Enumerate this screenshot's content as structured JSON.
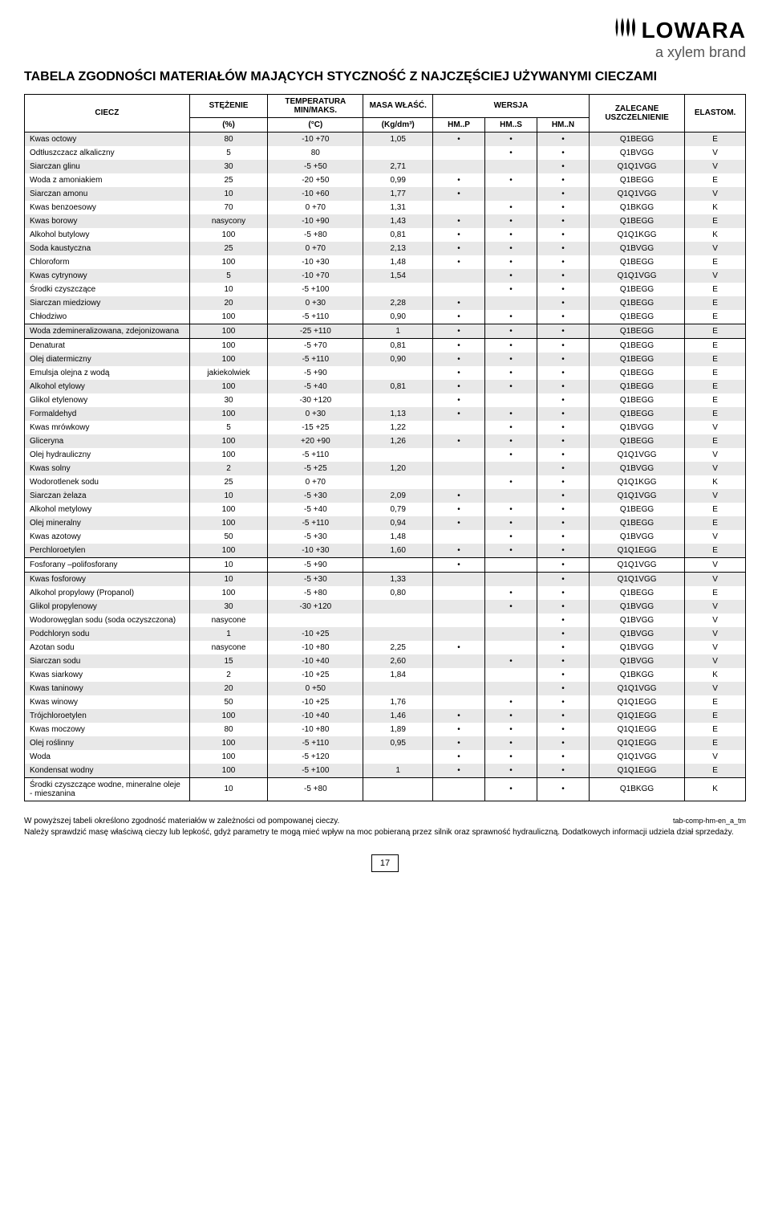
{
  "logo": {
    "brand": "LOWARA",
    "sub": "a xylem brand"
  },
  "title": "TABELA ZGODNOŚCI MATERIAŁÓW MAJĄCYCH STYCZNOŚĆ Z NAJCZĘŚCIEJ UŻYWANYMI CIECZAMI",
  "headers": {
    "liquid": "CIECZ",
    "conc": "STĘŻENIE",
    "temp": "TEMPERATURA MIN/MAKS.",
    "sg": "MASA WŁAŚĆ.",
    "version": "WERSJA",
    "seal": "ZALECANE USZCZELNIENIE",
    "elast": "ELASTOM.",
    "conc_u": "(%)",
    "temp_u": "(°C)",
    "sg_u": "(Kg/dm³)",
    "hmp": "HM..P",
    "hms": "HM..S",
    "hmn": "HM..N"
  },
  "rows": [
    {
      "l": "Kwas octowy",
      "c": "80",
      "t": "-10 +70",
      "sg": "1,05",
      "p": "•",
      "s": "•",
      "n": "•",
      "seal": "Q1BEGG",
      "e": "E"
    },
    {
      "l": "Odtłuszczacz alkaliczny",
      "c": "5",
      "t": "80",
      "sg": "",
      "p": "",
      "s": "•",
      "n": "•",
      "seal": "Q1BVGG",
      "e": "V"
    },
    {
      "l": "Siarczan glinu",
      "c": "30",
      "t": "-5 +50",
      "sg": "2,71",
      "p": "",
      "s": "",
      "n": "•",
      "seal": "Q1Q1VGG",
      "e": "V"
    },
    {
      "l": "Woda z amoniakiem",
      "c": "25",
      "t": "-20 +50",
      "sg": "0,99",
      "p": "•",
      "s": "•",
      "n": "•",
      "seal": "Q1BEGG",
      "e": "E"
    },
    {
      "l": "Siarczan amonu",
      "c": "10",
      "t": "-10 +60",
      "sg": "1,77",
      "p": "•",
      "s": "",
      "n": "•",
      "seal": "Q1Q1VGG",
      "e": "V"
    },
    {
      "l": "Kwas benzoesowy",
      "c": "70",
      "t": "0 +70",
      "sg": "1,31",
      "p": "",
      "s": "•",
      "n": "•",
      "seal": "Q1BKGG",
      "e": "K"
    },
    {
      "l": "Kwas borowy",
      "c": "nasycony",
      "t": "-10 +90",
      "sg": "1,43",
      "p": "•",
      "s": "•",
      "n": "•",
      "seal": "Q1BEGG",
      "e": "E"
    },
    {
      "l": "Alkohol butylowy",
      "c": "100",
      "t": "-5 +80",
      "sg": "0,81",
      "p": "•",
      "s": "•",
      "n": "•",
      "seal": "Q1Q1KGG",
      "e": "K"
    },
    {
      "l": "Soda kaustyczna",
      "c": "25",
      "t": "0 +70",
      "sg": "2,13",
      "p": "•",
      "s": "•",
      "n": "•",
      "seal": "Q1BVGG",
      "e": "V"
    },
    {
      "l": "Chloroform",
      "c": "100",
      "t": "-10 +30",
      "sg": "1,48",
      "p": "•",
      "s": "•",
      "n": "•",
      "seal": "Q1BEGG",
      "e": "E"
    },
    {
      "l": "Kwas cytrynowy",
      "c": "5",
      "t": "-10 +70",
      "sg": "1,54",
      "p": "",
      "s": "•",
      "n": "•",
      "seal": "Q1Q1VGG",
      "e": "V"
    },
    {
      "l": "Środki czyszczące",
      "c": "10",
      "t": "-5 +100",
      "sg": "",
      "p": "",
      "s": "•",
      "n": "•",
      "seal": "Q1BEGG",
      "e": "E"
    },
    {
      "l": "Siarczan miedziowy",
      "c": "20",
      "t": "0 +30",
      "sg": "2,28",
      "p": "•",
      "s": "",
      "n": "•",
      "seal": "Q1BEGG",
      "e": "E"
    },
    {
      "l": "Chłodziwo",
      "c": "100",
      "t": "-5 +110",
      "sg": "0,90",
      "p": "•",
      "s": "•",
      "n": "•",
      "seal": "Q1BEGG",
      "e": "E",
      "sep": true
    },
    {
      "l": "Woda zdemineralizowana, zdejonizowana",
      "c": "100",
      "t": "-25 +110",
      "sg": "1",
      "p": "•",
      "s": "•",
      "n": "•",
      "seal": "Q1BEGG",
      "e": "E",
      "sep": true
    },
    {
      "l": "Denaturat",
      "c": "100",
      "t": "-5 +70",
      "sg": "0,81",
      "p": "•",
      "s": "•",
      "n": "•",
      "seal": "Q1BEGG",
      "e": "E",
      "sepT": true
    },
    {
      "l": "Olej diatermiczny",
      "c": "100",
      "t": "-5 +110",
      "sg": "0,90",
      "p": "•",
      "s": "•",
      "n": "•",
      "seal": "Q1BEGG",
      "e": "E"
    },
    {
      "l": "Emulsja olejna z wodą",
      "c": "jakiekolwiek",
      "t": "-5 +90",
      "sg": "",
      "p": "•",
      "s": "•",
      "n": "•",
      "seal": "Q1BEGG",
      "e": "E"
    },
    {
      "l": "Alkohol etylowy",
      "c": "100",
      "t": "-5 +40",
      "sg": "0,81",
      "p": "•",
      "s": "•",
      "n": "•",
      "seal": "Q1BEGG",
      "e": "E"
    },
    {
      "l": "Glikol etylenowy",
      "c": "30",
      "t": "-30 +120",
      "sg": "",
      "p": "•",
      "s": "",
      "n": "•",
      "seal": "Q1BEGG",
      "e": "E"
    },
    {
      "l": "Formaldehyd",
      "c": "100",
      "t": "0 +30",
      "sg": "1,13",
      "p": "•",
      "s": "•",
      "n": "•",
      "seal": "Q1BEGG",
      "e": "E"
    },
    {
      "l": "Kwas mrówkowy",
      "c": "5",
      "t": "-15 +25",
      "sg": "1,22",
      "p": "",
      "s": "•",
      "n": "•",
      "seal": "Q1BVGG",
      "e": "V"
    },
    {
      "l": "Gliceryna",
      "c": "100",
      "t": "+20 +90",
      "sg": "1,26",
      "p": "•",
      "s": "•",
      "n": "•",
      "seal": "Q1BEGG",
      "e": "E"
    },
    {
      "l": "Olej hydrauliczny",
      "c": "100",
      "t": "-5 +110",
      "sg": "",
      "p": "",
      "s": "•",
      "n": "•",
      "seal": "Q1Q1VGG",
      "e": "V"
    },
    {
      "l": "Kwas solny",
      "c": "2",
      "t": "-5 +25",
      "sg": "1,20",
      "p": "",
      "s": "",
      "n": "•",
      "seal": "Q1BVGG",
      "e": "V"
    },
    {
      "l": "Wodorotlenek sodu",
      "c": "25",
      "t": "0 +70",
      "sg": "",
      "p": "",
      "s": "•",
      "n": "•",
      "seal": "Q1Q1KGG",
      "e": "K"
    },
    {
      "l": "Siarczan żelaza",
      "c": "10",
      "t": "-5 +30",
      "sg": "2,09",
      "p": "•",
      "s": "",
      "n": "•",
      "seal": "Q1Q1VGG",
      "e": "V"
    },
    {
      "l": "Alkohol metylowy",
      "c": "100",
      "t": "-5 +40",
      "sg": "0,79",
      "p": "•",
      "s": "•",
      "n": "•",
      "seal": "Q1BEGG",
      "e": "E"
    },
    {
      "l": "Olej mineralny",
      "c": "100",
      "t": "-5 +110",
      "sg": "0,94",
      "p": "•",
      "s": "•",
      "n": "•",
      "seal": "Q1BEGG",
      "e": "E"
    },
    {
      "l": "Kwas azotowy",
      "c": "50",
      "t": "-5 +30",
      "sg": "1,48",
      "p": "",
      "s": "•",
      "n": "•",
      "seal": "Q1BVGG",
      "e": "V"
    },
    {
      "l": "Perchloroetylen",
      "c": "100",
      "t": "-10 +30",
      "sg": "1,60",
      "p": "•",
      "s": "•",
      "n": "•",
      "seal": "Q1Q1EGG",
      "e": "E",
      "sep": true
    },
    {
      "l": "Fosforany –polifosforany",
      "c": "10",
      "t": "-5 +90",
      "sg": "",
      "p": "•",
      "s": "",
      "n": "•",
      "seal": "Q1Q1VGG",
      "e": "V",
      "sep": true
    },
    {
      "l": "Kwas fosforowy",
      "c": "10",
      "t": "-5 +30",
      "sg": "1,33",
      "p": "",
      "s": "",
      "n": "•",
      "seal": "Q1Q1VGG",
      "e": "V",
      "sepT": true
    },
    {
      "l": "Alkohol propylowy (Propanol)",
      "c": "100",
      "t": "-5 +80",
      "sg": "0,80",
      "p": "",
      "s": "•",
      "n": "•",
      "seal": "Q1BEGG",
      "e": "E"
    },
    {
      "l": "Glikol propylenowy",
      "c": "30",
      "t": "-30 +120",
      "sg": "",
      "p": "",
      "s": "•",
      "n": "•",
      "seal": "Q1BVGG",
      "e": "V"
    },
    {
      "l": "Wodorowęglan sodu (soda oczyszczona)",
      "c": "nasycone",
      "t": "",
      "sg": "",
      "p": "",
      "s": "",
      "n": "•",
      "seal": "Q1BVGG",
      "e": "V"
    },
    {
      "l": "Podchloryn sodu",
      "c": "1",
      "t": "-10 +25",
      "sg": "",
      "p": "",
      "s": "",
      "n": "•",
      "seal": "Q1BVGG",
      "e": "V"
    },
    {
      "l": "Azotan sodu",
      "c": "nasycone",
      "t": "-10 +80",
      "sg": "2,25",
      "p": "•",
      "s": "",
      "n": "•",
      "seal": "Q1BVGG",
      "e": "V"
    },
    {
      "l": "Siarczan sodu",
      "c": "15",
      "t": "-10 +40",
      "sg": "2,60",
      "p": "",
      "s": "•",
      "n": "•",
      "seal": "Q1BVGG",
      "e": "V"
    },
    {
      "l": "Kwas siarkowy",
      "c": "2",
      "t": "-10 +25",
      "sg": "1,84",
      "p": "",
      "s": "",
      "n": "•",
      "seal": "Q1BKGG",
      "e": "K"
    },
    {
      "l": "Kwas taninowy",
      "c": "20",
      "t": "0 +50",
      "sg": "",
      "p": "",
      "s": "",
      "n": "•",
      "seal": "Q1Q1VGG",
      "e": "V"
    },
    {
      "l": "Kwas winowy",
      "c": "50",
      "t": "-10 +25",
      "sg": "1,76",
      "p": "",
      "s": "•",
      "n": "•",
      "seal": "Q1Q1EGG",
      "e": "E"
    },
    {
      "l": "Trójchloroetylen",
      "c": "100",
      "t": "-10 +40",
      "sg": "1,46",
      "p": "•",
      "s": "•",
      "n": "•",
      "seal": "Q1Q1EGG",
      "e": "E"
    },
    {
      "l": "Kwas moczowy",
      "c": "80",
      "t": "-10 +80",
      "sg": "1,89",
      "p": "•",
      "s": "•",
      "n": "•",
      "seal": "Q1Q1EGG",
      "e": "E"
    },
    {
      "l": "Olej roślinny",
      "c": "100",
      "t": "-5 +110",
      "sg": "0,95",
      "p": "•",
      "s": "•",
      "n": "•",
      "seal": "Q1Q1EGG",
      "e": "E"
    },
    {
      "l": "Woda",
      "c": "100",
      "t": "-5 +120",
      "sg": "",
      "p": "•",
      "s": "•",
      "n": "•",
      "seal": "Q1Q1VGG",
      "e": "V"
    },
    {
      "l": "Kondensat wodny",
      "c": "100",
      "t": "-5 +100",
      "sg": "1",
      "p": "•",
      "s": "•",
      "n": "•",
      "seal": "Q1Q1EGG",
      "e": "E",
      "sep": true
    },
    {
      "l": "Środki czyszczące wodne, mineralne oleje - mieszanina",
      "c": "10",
      "t": "-5 +80",
      "sg": "",
      "p": "",
      "s": "•",
      "n": "•",
      "seal": "Q1BKGG",
      "e": "K",
      "sepT": true,
      "last": true
    }
  ],
  "foot": {
    "p1": "W powyższej tabeli określono zgodność materiałów w zależności od pompowanej cieczy.",
    "p2": "Należy sprawdzić masę właściwą cieczy lub lepkość, gdyż parametry te mogą mieć wpływ na moc pobieraną przez silnik oraz sprawność hydrauliczną. Dodatkowych informacji udziela dział sprzedaży.",
    "code": "tab-comp-hm-en_a_tm"
  },
  "page": "17"
}
